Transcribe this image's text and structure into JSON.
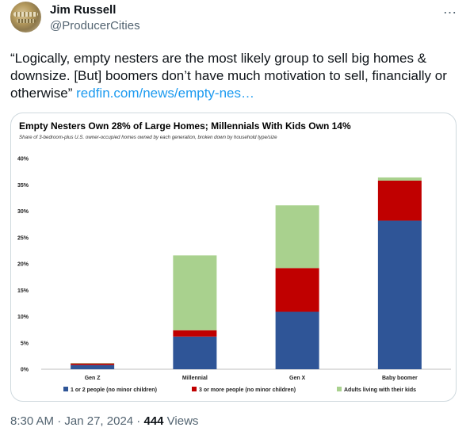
{
  "user": {
    "name": "Jim Russell",
    "handle": "@ProducerCities",
    "more_icon": "…"
  },
  "tweet": {
    "text": "“Logically, empty nesters are the most likely group to sell big homes & downsize. [But] boomers don’t have much motivation to sell, financially or otherwise” ",
    "link": "redfin.com/news/empty-nes…"
  },
  "footer": {
    "time": "8:30 AM",
    "sep1": " · ",
    "date": "Jan 27, 2024",
    "sep2": " · ",
    "views_count": "444",
    "views_label": " Views"
  },
  "chart_data": {
    "type": "bar",
    "stacked": true,
    "title": "Empty Nesters Own 28% of Large Homes; Millennials With Kids Own 14%",
    "subtitle": "Share of 3-bedroom-plus U.S. owner-occupied homes owned by each generation, broken down by household type/size",
    "categories": [
      "Gen Z",
      "Millennial",
      "Gen X",
      "Baby boomer"
    ],
    "series": [
      {
        "name": "1 or 2 people (no minor children)",
        "color": "#2f5597",
        "values": [
          0.8,
          6.2,
          10.9,
          28.2
        ]
      },
      {
        "name": "3 or more people (no minor children)",
        "color": "#c00000",
        "values": [
          0.3,
          1.2,
          8.3,
          7.6
        ]
      },
      {
        "name": "Adults living with their kids",
        "color": "#a9d18e",
        "values": [
          0.1,
          14.2,
          11.9,
          0.6
        ]
      }
    ],
    "ylim": [
      0,
      40
    ],
    "yticks": [
      "0%",
      "5%",
      "10%",
      "15%",
      "20%",
      "25%",
      "30%",
      "35%",
      "40%"
    ],
    "grid": false,
    "legend": "bottom"
  }
}
